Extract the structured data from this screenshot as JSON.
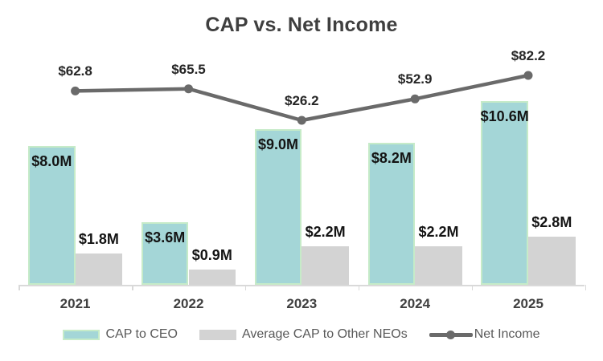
{
  "chart_data": {
    "type": "combo",
    "title": "CAP vs. Net Income",
    "categories": [
      "2021",
      "2022",
      "2023",
      "2024",
      "2025"
    ],
    "series": [
      {
        "name": "CAP to CEO",
        "type": "bar",
        "values": [
          8.0,
          3.6,
          9.0,
          8.2,
          10.6
        ],
        "labels": [
          "$8.0M",
          "$3.6M",
          "$9.0M",
          "$8.2M",
          "$10.6M"
        ],
        "color": "#a4d6d7",
        "border_color": "#c6ebc8"
      },
      {
        "name": "Average CAP to Other NEOs",
        "type": "bar",
        "values": [
          1.8,
          0.9,
          2.2,
          2.2,
          2.8
        ],
        "labels": [
          "$1.8M",
          "$0.9M",
          "$2.2M",
          "$2.2M",
          "$2.8M"
        ],
        "color": "#d3d3d3"
      },
      {
        "name": "Net Income",
        "type": "line",
        "values": [
          62.8,
          65.5,
          26.2,
          52.9,
          82.2
        ],
        "labels": [
          "$62.8",
          "$65.5",
          "$26.2",
          "$52.9",
          "$82.2"
        ],
        "color": "#6a6a6a"
      }
    ],
    "axes": {
      "x_ticks": [
        "2021",
        "2022",
        "2023",
        "2024",
        "2025"
      ],
      "y_axis_visible": false,
      "gridlines": false,
      "x_axis_color": "#d9d9d9"
    },
    "legend_position": "bottom",
    "bar_label_placement": "inside-top for CAP to CEO, above bar for Average CAP to Other NEOs",
    "line_label_placement": "above point"
  }
}
